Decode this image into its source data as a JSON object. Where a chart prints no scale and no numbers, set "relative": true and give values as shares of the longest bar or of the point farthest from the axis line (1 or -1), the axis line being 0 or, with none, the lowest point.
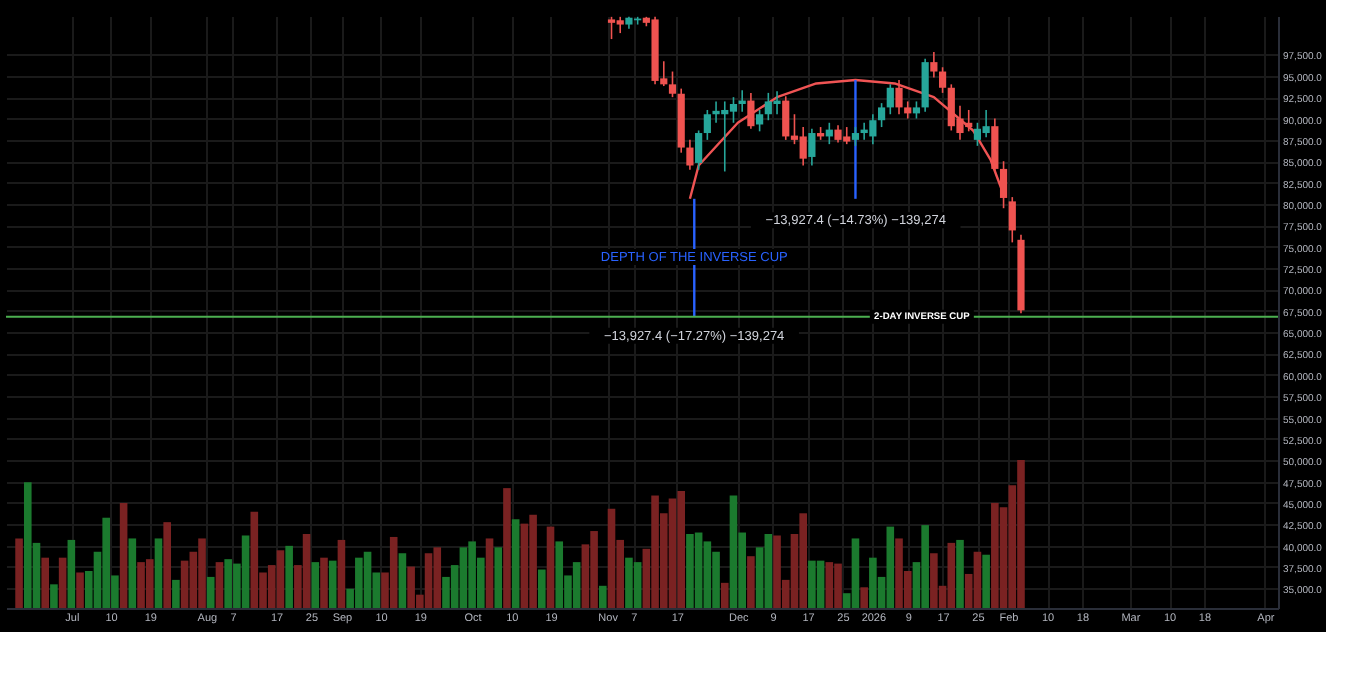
{
  "chart_data": [
    {
      "type": "candlestick",
      "x": [
        "2025-11-02",
        "2025-11-04",
        "2025-11-06",
        "2025-11-08",
        "2025-11-10",
        "2025-11-12",
        "2025-11-14",
        "2025-11-16",
        "2025-11-18",
        "2025-11-20",
        "2025-11-22",
        "2025-11-24",
        "2025-11-26",
        "2025-11-28",
        "2025-11-30",
        "2025-12-02",
        "2025-12-04",
        "2025-12-06",
        "2025-12-08",
        "2025-12-10",
        "2025-12-12",
        "2025-12-14",
        "2025-12-16",
        "2025-12-18",
        "2025-12-20",
        "2025-12-22",
        "2025-12-24",
        "2025-12-26",
        "2025-12-28",
        "2025-12-30",
        "2026-01-01",
        "2026-01-03",
        "2026-01-05",
        "2026-01-07",
        "2026-01-09",
        "2026-01-11",
        "2026-01-13",
        "2026-01-15",
        "2026-01-17",
        "2026-01-19",
        "2026-01-21",
        "2026-01-23",
        "2026-01-25",
        "2026-01-27",
        "2026-01-29",
        "2026-01-31",
        "2026-02-02",
        "2026-02-04"
      ],
      "ohlc": [
        [
          101600,
          101900,
          99300,
          101200
        ],
        [
          101500,
          101900,
          100000,
          101000
        ],
        [
          101000,
          101900,
          100500,
          101800
        ],
        [
          101500,
          101900,
          101000,
          101700
        ],
        [
          101800,
          101900,
          100800,
          101200
        ],
        [
          101600,
          101900,
          94000,
          94400
        ],
        [
          94700,
          96700,
          93800,
          94000
        ],
        [
          94000,
          95500,
          92500,
          92900
        ],
        [
          92900,
          93500,
          86000,
          86600
        ],
        [
          86600,
          87500,
          84000,
          84500
        ],
        [
          84800,
          88600,
          84000,
          88300
        ],
        [
          88300,
          91000,
          87500,
          90500
        ],
        [
          90500,
          92000,
          89500,
          90900
        ],
        [
          90500,
          92000,
          83800,
          91000
        ],
        [
          90800,
          92500,
          89500,
          91700
        ],
        [
          91700,
          93300,
          90800,
          92100
        ],
        [
          92100,
          93000,
          88800,
          89100
        ],
        [
          89300,
          91000,
          88500,
          90500
        ],
        [
          90500,
          93000,
          89800,
          92000
        ],
        [
          91700,
          93200,
          90500,
          92100
        ],
        [
          92100,
          92600,
          87500,
          87900
        ],
        [
          88000,
          90500,
          87000,
          87500
        ],
        [
          87900,
          89000,
          84500,
          85300
        ],
        [
          85500,
          88800,
          84500,
          88300
        ],
        [
          88300,
          89000,
          87500,
          87900
        ],
        [
          87900,
          89500,
          87000,
          88700
        ],
        [
          88700,
          89200,
          87200,
          87500
        ],
        [
          87900,
          89000,
          87000,
          87300
        ],
        [
          87500,
          89000,
          86800,
          88300
        ],
        [
          88300,
          89500,
          87500,
          88700
        ],
        [
          87900,
          90500,
          87000,
          89800
        ],
        [
          89800,
          91800,
          89000,
          91300
        ],
        [
          91300,
          94000,
          90500,
          93600
        ],
        [
          93600,
          94500,
          90500,
          91300
        ],
        [
          91300,
          92000,
          90000,
          90600
        ],
        [
          90600,
          92000,
          90000,
          91300
        ],
        [
          91300,
          97000,
          90800,
          96600
        ],
        [
          96600,
          97800,
          94800,
          95500
        ],
        [
          95500,
          96000,
          93000,
          93600
        ],
        [
          93600,
          94000,
          88600,
          89100
        ],
        [
          90000,
          91500,
          87500,
          88300
        ],
        [
          89500,
          91000,
          88500,
          89000
        ],
        [
          87500,
          89500,
          86800,
          88800
        ],
        [
          88300,
          91000,
          87800,
          89100
        ],
        [
          89100,
          90000,
          83800,
          84100
        ],
        [
          84100,
          85000,
          79500,
          80700
        ],
        [
          80300,
          80800,
          75500,
          76900
        ],
        [
          75800,
          76400,
          67200,
          67540
        ]
      ],
      "colors": [
        "#ef5350",
        "#ef5350",
        "#26a69a",
        "#26a69a",
        "#ef5350",
        "#ef5350",
        "#ef5350",
        "#ef5350",
        "#ef5350",
        "#ef5350",
        "#26a69a",
        "#26a69a",
        "#26a69a",
        "#26a69a",
        "#26a69a",
        "#26a69a",
        "#ef5350",
        "#26a69a",
        "#26a69a",
        "#26a69a",
        "#ef5350",
        "#ef5350",
        "#ef5350",
        "#26a69a",
        "#ef5350",
        "#26a69a",
        "#ef5350",
        "#ef5350",
        "#26a69a",
        "#26a69a",
        "#26a69a",
        "#26a69a",
        "#26a69a",
        "#ef5350",
        "#ef5350",
        "#26a69a",
        "#26a69a",
        "#ef5350",
        "#ef5350",
        "#ef5350",
        "#ef5350",
        "#ef5350",
        "#26a69a",
        "#26a69a",
        "#ef5350",
        "#ef5350",
        "#ef5350",
        "#ef5350"
      ],
      "series": [
        {
          "type": "line",
          "color": "#f05454",
          "x": [
            "2025-11-20",
            "2025-11-22",
            "2025-12-01",
            "2025-12-10",
            "2025-12-19",
            "2025-12-28",
            "2026-01-06",
            "2026-01-15",
            "2026-01-24",
            "2026-01-28",
            "2026-01-31"
          ],
          "values": [
            80600,
            84500,
            89500,
            92500,
            94100,
            94500,
            94100,
            92500,
            88600,
            85200,
            81100
          ]
        },
        {
          "type": "line",
          "color": "#2962ff",
          "x": [
            "2025-12-28",
            "2025-12-28"
          ],
          "values": [
            94500,
            80600
          ]
        },
        {
          "type": "line",
          "color": "#2962ff",
          "x": [
            "2025-11-21",
            "2025-11-21"
          ],
          "values": [
            80600,
            66800
          ]
        }
      ],
      "ref_lines": [
        {
          "axis": "y",
          "value": 66800,
          "label": "2-DAY INVERSE CUP",
          "color": "#4caf50"
        }
      ],
      "annotations": [
        "−13,927.4 (−14.73%) −139,274",
        {
          "text": "DEPTH OF THE INVERSE CUP",
          "x": "2025-11-21",
          "y": 73800
        },
        "−13,927.4 (−17.27%) −139,274"
      ],
      "xlim": [
        "2025-06-16",
        "2026-04-04"
      ],
      "xticks": [
        {
          "value": "2025-07-01",
          "label": "Jul"
        },
        {
          "value": "2025-07-10",
          "label": "10"
        },
        {
          "value": "2025-07-19",
          "label": "19"
        },
        {
          "value": "2025-08-01",
          "label": "Aug"
        },
        {
          "value": "2025-08-07",
          "label": "7"
        },
        {
          "value": "2025-08-17",
          "label": "17"
        },
        {
          "value": "2025-08-25",
          "label": "25"
        },
        {
          "value": "2025-09-01",
          "label": "Sep"
        },
        {
          "value": "2025-09-10",
          "label": "10"
        },
        {
          "value": "2025-09-19",
          "label": "19"
        },
        {
          "value": "2025-10-01",
          "label": "Oct"
        },
        {
          "value": "2025-10-10",
          "label": "10"
        },
        {
          "value": "2025-10-19",
          "label": "19"
        },
        {
          "value": "2025-11-01",
          "label": "Nov"
        },
        {
          "value": "2025-11-07",
          "label": "7"
        },
        {
          "value": "2025-11-17",
          "label": "17"
        },
        {
          "value": "2025-12-01",
          "label": "Dec"
        },
        {
          "value": "2025-12-09",
          "label": "9"
        },
        {
          "value": "2025-12-17",
          "label": "17"
        },
        {
          "value": "2025-12-25",
          "label": "25"
        },
        {
          "value": "2026-01-01",
          "label": "2026"
        },
        {
          "value": "2026-01-09",
          "label": "9"
        },
        {
          "value": "2026-01-17",
          "label": "17"
        },
        {
          "value": "2026-01-25",
          "label": "25"
        },
        {
          "value": "2026-02-01",
          "label": "Feb"
        },
        {
          "value": "2026-02-10",
          "label": "10"
        },
        {
          "value": "2026-02-18",
          "label": "18"
        },
        {
          "value": "2026-03-01",
          "label": "Mar"
        },
        {
          "value": "2026-03-10",
          "label": "10"
        },
        {
          "value": "2026-03-18",
          "label": "18"
        },
        {
          "value": "2026-04-01",
          "label": "Apr"
        }
      ],
      "ylim": [
        32700,
        102000
      ],
      "yticks": [
        {
          "value": 35000,
          "label": "35,000.0"
        },
        {
          "value": 37500,
          "label": "37,500.0"
        },
        {
          "value": 40000,
          "label": "40,000.0"
        },
        {
          "value": 42500,
          "label": "42,500.0"
        },
        {
          "value": 45000,
          "label": "45,000.0"
        },
        {
          "value": 47500,
          "label": "47,500.0"
        },
        {
          "value": 50000,
          "label": "50,000.0"
        },
        {
          "value": 52500,
          "label": "52,500.0"
        },
        {
          "value": 55000,
          "label": "55,000.0"
        },
        {
          "value": 57500,
          "label": "57,500.0"
        },
        {
          "value": 60000,
          "label": "60,000.0"
        },
        {
          "value": 62500,
          "label": "62,500.0"
        },
        {
          "value": 65000,
          "label": "65,000.0"
        },
        {
          "value": 67500,
          "label": "67,500.0"
        },
        {
          "value": 70000,
          "label": "70,000.0"
        },
        {
          "value": 72500,
          "label": "72,500.0"
        },
        {
          "value": 75000,
          "label": "75,000.0"
        },
        {
          "value": 77500,
          "label": "77,500.0"
        },
        {
          "value": 80000,
          "label": "80,000.0"
        },
        {
          "value": 82500,
          "label": "82,500.0"
        },
        {
          "value": 85000,
          "label": "85,000.0"
        },
        {
          "value": 87500,
          "label": "87,500.0"
        },
        {
          "value": 90000,
          "label": "90,000.0"
        },
        {
          "value": 92500,
          "label": "92,500.0"
        },
        {
          "value": 95000,
          "label": "95,000.0"
        },
        {
          "value": 97500,
          "label": "97,500.0"
        }
      ],
      "grid": true
    },
    {
      "type": "bar",
      "relative": true,
      "xlim": [
        "2025-06-16",
        "2026-04-04"
      ],
      "x": [
        "2025-06-19",
        "2025-06-21",
        "2025-06-23",
        "2025-06-25",
        "2025-06-27",
        "2025-06-29",
        "2025-07-01",
        "2025-07-03",
        "2025-07-05",
        "2025-07-07",
        "2025-07-09",
        "2025-07-11",
        "2025-07-13",
        "2025-07-15",
        "2025-07-17",
        "2025-07-19",
        "2025-07-21",
        "2025-07-23",
        "2025-07-25",
        "2025-07-27",
        "2025-07-29",
        "2025-07-31",
        "2025-08-02",
        "2025-08-04",
        "2025-08-06",
        "2025-08-08",
        "2025-08-10",
        "2025-08-12",
        "2025-08-14",
        "2025-08-16",
        "2025-08-18",
        "2025-08-20",
        "2025-08-22",
        "2025-08-24",
        "2025-08-26",
        "2025-08-28",
        "2025-08-30",
        "2025-09-01",
        "2025-09-03",
        "2025-09-05",
        "2025-09-07",
        "2025-09-09",
        "2025-09-11",
        "2025-09-13",
        "2025-09-15",
        "2025-09-17",
        "2025-09-19",
        "2025-09-21",
        "2025-09-23",
        "2025-09-25",
        "2025-09-27",
        "2025-09-29",
        "2025-10-01",
        "2025-10-03",
        "2025-10-05",
        "2025-10-07",
        "2025-10-09",
        "2025-10-11",
        "2025-10-13",
        "2025-10-15",
        "2025-10-17",
        "2025-10-19",
        "2025-10-21",
        "2025-10-23",
        "2025-10-25",
        "2025-10-27",
        "2025-10-29",
        "2025-10-31",
        "2025-11-02",
        "2025-11-04",
        "2025-11-06",
        "2025-11-08",
        "2025-11-10",
        "2025-11-12",
        "2025-11-14",
        "2025-11-16",
        "2025-11-18",
        "2025-11-20",
        "2025-11-22",
        "2025-11-24",
        "2025-11-26",
        "2025-11-28",
        "2025-11-30",
        "2025-12-02",
        "2025-12-04",
        "2025-12-06",
        "2025-12-08",
        "2025-12-10",
        "2025-12-12",
        "2025-12-14",
        "2025-12-16",
        "2025-12-18",
        "2025-12-20",
        "2025-12-22",
        "2025-12-24",
        "2025-12-26",
        "2025-12-28",
        "2025-12-30",
        "2026-01-01",
        "2026-01-03",
        "2026-01-05",
        "2026-01-07",
        "2026-01-09",
        "2026-01-11",
        "2026-01-13",
        "2026-01-15",
        "2026-01-17",
        "2026-01-19",
        "2026-01-21",
        "2026-01-23",
        "2026-01-25",
        "2026-01-27",
        "2026-01-29",
        "2026-01-31",
        "2026-02-02",
        "2026-02-04"
      ],
      "values": [
        0.47,
        0.85,
        0.44,
        0.34,
        0.16,
        0.34,
        0.46,
        0.24,
        0.25,
        0.38,
        0.61,
        0.22,
        0.71,
        0.47,
        0.31,
        0.33,
        0.47,
        0.58,
        0.19,
        0.32,
        0.38,
        0.47,
        0.21,
        0.31,
        0.33,
        0.3,
        0.49,
        0.65,
        0.24,
        0.29,
        0.39,
        0.42,
        0.29,
        0.5,
        0.31,
        0.34,
        0.32,
        0.46,
        0.13,
        0.34,
        0.38,
        0.24,
        0.24,
        0.48,
        0.37,
        0.28,
        0.09,
        0.37,
        0.41,
        0.21,
        0.29,
        0.41,
        0.45,
        0.34,
        0.47,
        0.41,
        0.81,
        0.6,
        0.57,
        0.63,
        0.26,
        0.55,
        0.45,
        0.22,
        0.31,
        0.43,
        0.52,
        0.15,
        0.67,
        0.46,
        0.34,
        0.31,
        0.4,
        0.76,
        0.64,
        0.74,
        0.79,
        0.5,
        0.51,
        0.45,
        0.38,
        0.17,
        0.76,
        0.51,
        0.35,
        0.41,
        0.5,
        0.49,
        0.19,
        0.5,
        0.64,
        0.32,
        0.32,
        0.31,
        0.3,
        0.1,
        0.47,
        0.14,
        0.34,
        0.21,
        0.55,
        0.47,
        0.25,
        0.31,
        0.56,
        0.37,
        0.15,
        0.44,
        0.46,
        0.23,
        0.38,
        0.36,
        0.71,
        0.68,
        0.83,
        1
      ],
      "colors": [
        "#7a2222",
        "#1b7a2e",
        "#1b7a2e",
        "#7a2222",
        "#1b7a2e",
        "#7a2222",
        "#1b7a2e",
        "#7a2222",
        "#1b7a2e",
        "#1b7a2e",
        "#1b7a2e",
        "#1b7a2e",
        "#7a2222",
        "#1b7a2e",
        "#7a2222",
        "#7a2222",
        "#1b7a2e",
        "#7a2222",
        "#1b7a2e",
        "#7a2222",
        "#7a2222",
        "#7a2222",
        "#1b7a2e",
        "#7a2222",
        "#1b7a2e",
        "#1b7a2e",
        "#1b7a2e",
        "#7a2222",
        "#7a2222",
        "#7a2222",
        "#7a2222",
        "#1b7a2e",
        "#7a2222",
        "#7a2222",
        "#1b7a2e",
        "#7a2222",
        "#1b7a2e",
        "#7a2222",
        "#1b7a2e",
        "#1b7a2e",
        "#1b7a2e",
        "#1b7a2e",
        "#7a2222",
        "#7a2222",
        "#1b7a2e",
        "#7a2222",
        "#7a2222",
        "#7a2222",
        "#7a2222",
        "#1b7a2e",
        "#1b7a2e",
        "#1b7a2e",
        "#1b7a2e",
        "#1b7a2e",
        "#7a2222",
        "#1b7a2e",
        "#7a2222",
        "#1b7a2e",
        "#7a2222",
        "#7a2222",
        "#1b7a2e",
        "#7a2222",
        "#1b7a2e",
        "#1b7a2e",
        "#1b7a2e",
        "#7a2222",
        "#7a2222",
        "#1b7a2e",
        "#7a2222",
        "#7a2222",
        "#1b7a2e",
        "#1b7a2e",
        "#7a2222",
        "#7a2222",
        "#7a2222",
        "#7a2222",
        "#7a2222",
        "#1b7a2e",
        "#1b7a2e",
        "#1b7a2e",
        "#1b7a2e",
        "#7a2222",
        "#1b7a2e",
        "#1b7a2e",
        "#7a2222",
        "#1b7a2e",
        "#1b7a2e",
        "#7a2222",
        "#7a2222",
        "#7a2222",
        "#7a2222",
        "#1b7a2e",
        "#1b7a2e",
        "#7a2222",
        "#7a2222",
        "#1b7a2e",
        "#1b7a2e",
        "#7a2222",
        "#1b7a2e",
        "#1b7a2e",
        "#1b7a2e",
        "#7a2222",
        "#7a2222",
        "#1b7a2e",
        "#1b7a2e",
        "#7a2222",
        "#7a2222",
        "#7a2222",
        "#1b7a2e",
        "#7a2222",
        "#7a2222",
        "#1b7a2e",
        "#7a2222",
        "#7a2222",
        "#7a2222",
        "#7a2222"
      ]
    }
  ]
}
